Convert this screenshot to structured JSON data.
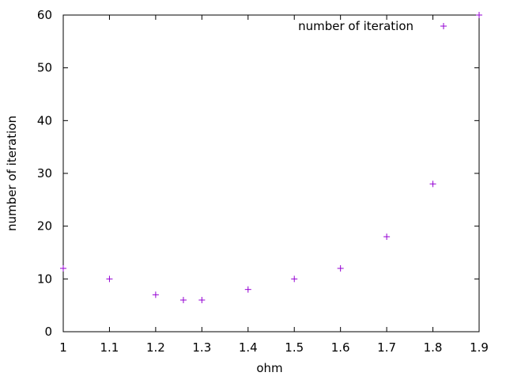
{
  "chart_data": {
    "type": "scatter",
    "title": "",
    "xlabel": "ohm",
    "ylabel": "number of iteration",
    "xlim": [
      1,
      1.9
    ],
    "ylim": [
      0,
      60
    ],
    "xticks": [
      "1",
      "1.1",
      "1.2",
      "1.3",
      "1.4",
      "1.5",
      "1.6",
      "1.7",
      "1.8",
      "1.9"
    ],
    "yticks": [
      "0",
      "10",
      "20",
      "30",
      "40",
      "50",
      "60"
    ],
    "grid": false,
    "legend_position": "top-right",
    "marker": "plus",
    "series": [
      {
        "name": "number of iteration",
        "color": "#9400d3",
        "points": [
          {
            "x": 1.0,
            "y": 12
          },
          {
            "x": 1.1,
            "y": 10
          },
          {
            "x": 1.2,
            "y": 7
          },
          {
            "x": 1.26,
            "y": 6
          },
          {
            "x": 1.3,
            "y": 6
          },
          {
            "x": 1.4,
            "y": 8
          },
          {
            "x": 1.5,
            "y": 10
          },
          {
            "x": 1.6,
            "y": 12
          },
          {
            "x": 1.7,
            "y": 18
          },
          {
            "x": 1.8,
            "y": 28
          },
          {
            "x": 1.9,
            "y": 60
          }
        ]
      }
    ]
  }
}
